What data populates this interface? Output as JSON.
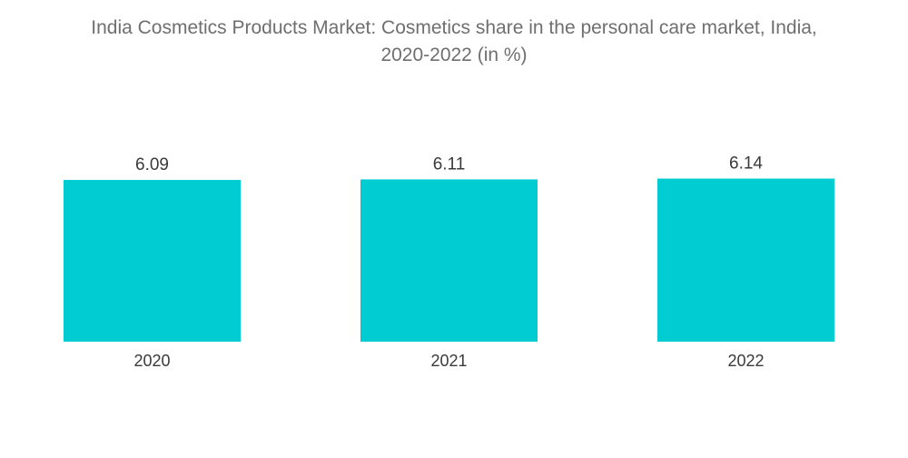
{
  "chart_data": {
    "type": "bar",
    "title_line1": "India Cosmetics Products Market: Cosmetics share in the personal care market, India,",
    "title_line2": "2020-2022 (in %)",
    "categories": [
      "2020",
      "2021",
      "2022"
    ],
    "values": [
      6.09,
      6.11,
      6.14
    ],
    "value_labels": [
      "6.09",
      "6.11",
      "6.14"
    ],
    "bar_color": "#00ccd1",
    "grid": false,
    "legend": "none"
  }
}
